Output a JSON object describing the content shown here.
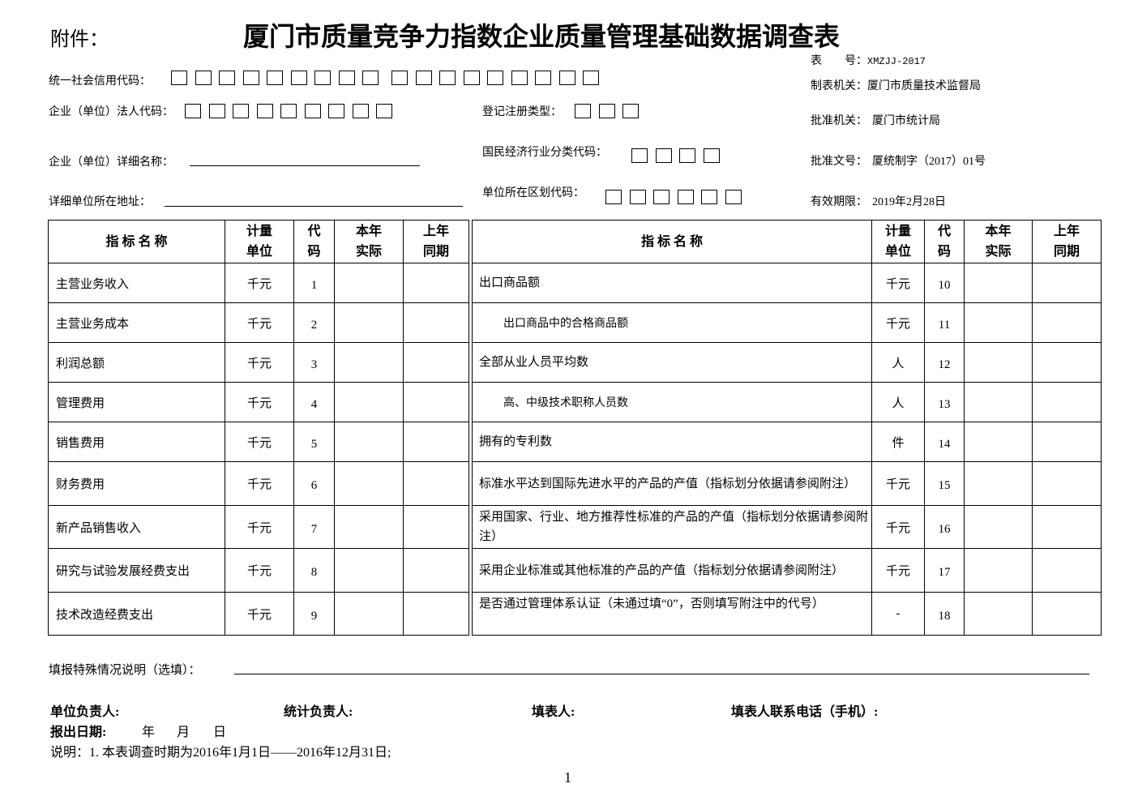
{
  "header": {
    "attachment": "附件：",
    "title": "厦门市质量竞争力指数企业质量管理基础数据调查表"
  },
  "meta": {
    "form_no_label": "表　　号：",
    "form_no": "XMZJJ-2017",
    "issuer_label": "制表机关：",
    "issuer": "厦门市质量技术监督局",
    "approver_label": "批准机关：",
    "approver": "厦门市统计局",
    "approval_no_label": "批准文号：",
    "approval_no": "厦统制字（2017）01号",
    "valid_label": "有效期限：",
    "valid": "2019年2月28日"
  },
  "fields": {
    "credit_code": {
      "label": "统一社会信用代码：",
      "box_groups": [
        9,
        9
      ]
    },
    "legal_code": {
      "label": "企业（单位）法人代码：",
      "box_groups": [
        9
      ]
    },
    "reg_type": {
      "label": "登记注册类型：",
      "box_groups": [
        3
      ]
    },
    "full_name": {
      "label": "企业（单位）详细名称："
    },
    "industry_code": {
      "label": "国民经济行业分类代码：",
      "box_groups": [
        4
      ]
    },
    "address": {
      "label": "详细单位所在地址："
    },
    "region_code": {
      "label": "单位所在区划代码：",
      "box_groups": [
        6
      ]
    }
  },
  "table": {
    "headers": {
      "name": "指 标 名 称",
      "unit": [
        "计量",
        "单位"
      ],
      "code": [
        "代",
        "码"
      ],
      "current": [
        "本年",
        "实际"
      ],
      "last": [
        "上年",
        "同期"
      ]
    },
    "rows": [
      {
        "left": {
          "name": "主营业务收入",
          "unit": "千元",
          "code": "1"
        },
        "right": {
          "name": "出口商品额",
          "unit": "千元",
          "code": "10",
          "indent": false
        }
      },
      {
        "left": {
          "name": "主营业务成本",
          "unit": "千元",
          "code": "2"
        },
        "right": {
          "name": "出口商品中的合格商品额",
          "unit": "千元",
          "code": "11",
          "indent": true
        }
      },
      {
        "left": {
          "name": "利润总额",
          "unit": "千元",
          "code": "3"
        },
        "right": {
          "name": "全部从业人员平均数",
          "unit": "人",
          "code": "12",
          "indent": false
        }
      },
      {
        "left": {
          "name": "管理费用",
          "unit": "千元",
          "code": "4"
        },
        "right": {
          "name": "高、中级技术职称人员数",
          "unit": "人",
          "code": "13",
          "indent": true
        }
      },
      {
        "left": {
          "name": "销售费用",
          "unit": "千元",
          "code": "5"
        },
        "right": {
          "name": "拥有的专利数",
          "unit": "件",
          "code": "14",
          "indent": false
        }
      },
      {
        "left": {
          "name": "财务费用",
          "unit": "千元",
          "code": "6"
        },
        "right": {
          "name": "标准水平达到国际先进水平的产品的产值（指标划分依据请参阅附注）",
          "unit": "千元",
          "code": "15",
          "indent": false
        }
      },
      {
        "left": {
          "name": "新产品销售收入",
          "unit": "千元",
          "code": "7"
        },
        "right": {
          "name": "采用国家、行业、地方推荐性标准的产品的产值（指标划分依据请参阅附注）",
          "unit": "千元",
          "code": "16",
          "indent": false
        }
      },
      {
        "left": {
          "name": "研究与试验发展经费支出",
          "unit": "千元",
          "code": "8"
        },
        "right": {
          "name": "采用企业标准或其他标准的产品的产值（指标划分依据请参阅附注）",
          "unit": "千元",
          "code": "17",
          "indent": false
        }
      },
      {
        "left": {
          "name": "技术改造经费支出",
          "unit": "千元",
          "code": "9"
        },
        "right": {
          "name": "是否通过管理体系认证（未通过填“0”，否则填写附注中的代号）",
          "unit": "-",
          "code": "18",
          "indent": false
        }
      }
    ]
  },
  "footer": {
    "special_label": "填报特殊情况说明（选填）：",
    "unit_head": "单位负责人:",
    "stat_head": "统计负责人:",
    "filler": "填表人:",
    "phone": "填表人联系电话（手机）:",
    "date_label": "报出日期:",
    "date_parts": [
      "年",
      "月",
      "日"
    ],
    "note": "说明：1. 本表调查时期为2016年1月1日——2016年12月31日;",
    "page": "1"
  }
}
